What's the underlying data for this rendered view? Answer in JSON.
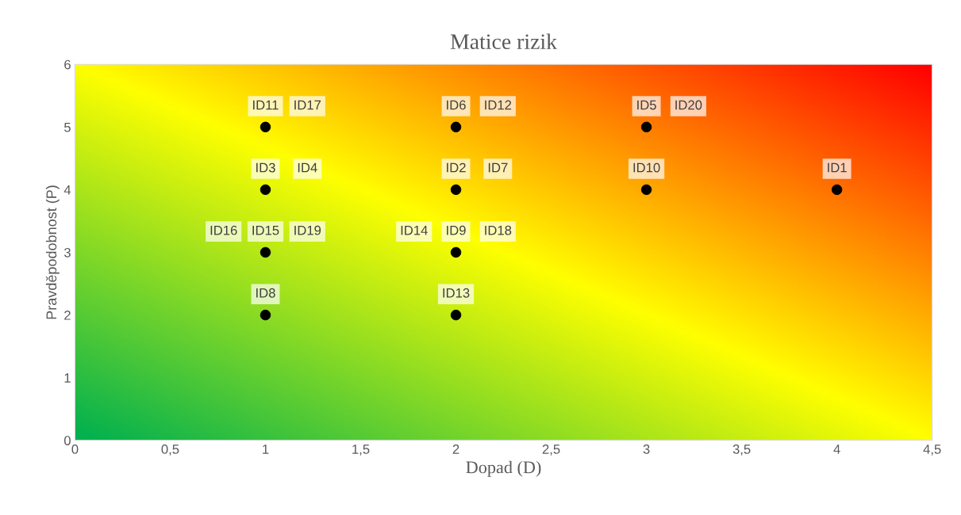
{
  "chart_data": {
    "type": "scatter",
    "title": "Matice rizik",
    "xlabel": "Dopad (D)",
    "ylabel": "Pravděpodobnost (P)",
    "x": [
      1,
      1,
      1,
      1,
      2,
      2,
      2,
      2,
      3,
      3,
      4
    ],
    "series": [
      {
        "color": "#000000",
        "values": [
          5,
          4,
          3,
          2,
          5,
          4,
          3,
          2,
          5,
          4,
          4
        ]
      }
    ],
    "marker": "circle",
    "xlim": [
      0,
      4.5
    ],
    "ylim": [
      0,
      6
    ],
    "xticks": [
      0,
      {
        "value": 0.5,
        "label": "0,5"
      },
      1,
      {
        "value": 1.5,
        "label": "1,5"
      },
      2,
      {
        "value": 2.5,
        "label": "2,5"
      },
      3,
      {
        "value": 3.5,
        "label": "3,5"
      },
      4,
      {
        "value": 4.5,
        "label": "4,5"
      }
    ],
    "yticks": [
      0,
      1,
      2,
      3,
      4,
      5,
      6
    ],
    "grid": false,
    "legend": false,
    "annotations": [
      {
        "text": "ID11",
        "x": 1,
        "y": 5
      },
      {
        "text": "ID17",
        "x": 1,
        "y": 5
      },
      {
        "text": "ID3",
        "x": 1,
        "y": 4
      },
      {
        "text": "ID4",
        "x": 1,
        "y": 4
      },
      {
        "text": "ID16",
        "x": 1,
        "y": 3
      },
      {
        "text": "ID15",
        "x": 1,
        "y": 3
      },
      {
        "text": "ID19",
        "x": 1,
        "y": 3
      },
      {
        "text": "ID8",
        "x": 1,
        "y": 2
      },
      {
        "text": "ID6",
        "x": 2,
        "y": 5
      },
      {
        "text": "ID12",
        "x": 2,
        "y": 5
      },
      {
        "text": "ID2",
        "x": 2,
        "y": 4
      },
      {
        "text": "ID7",
        "x": 2,
        "y": 4
      },
      {
        "text": "ID14",
        "x": 2,
        "y": 3
      },
      {
        "text": "ID9",
        "x": 2,
        "y": 3
      },
      {
        "text": "ID18",
        "x": 2,
        "y": 3
      },
      {
        "text": "ID13",
        "x": 2,
        "y": 2
      },
      {
        "text": "ID5",
        "x": 3,
        "y": 5
      },
      {
        "text": "ID20",
        "x": 3,
        "y": 5
      },
      {
        "text": "ID10",
        "x": 3,
        "y": 4
      },
      {
        "text": "ID1",
        "x": 4,
        "y": 4
      }
    ]
  }
}
